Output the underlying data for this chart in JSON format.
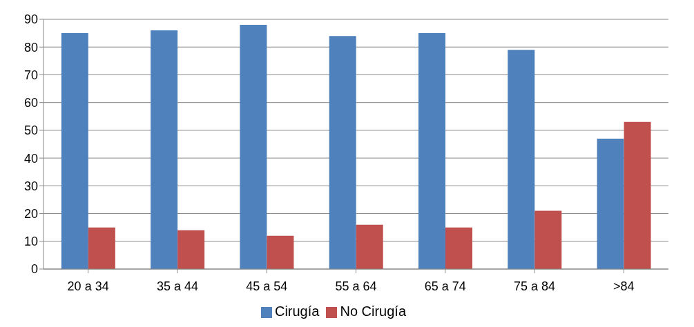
{
  "chart_data": {
    "type": "bar",
    "categories": [
      "20 a 34",
      "35 a 44",
      "45 a 54",
      "55 a 64",
      "65 a 74",
      "75 a 84",
      ">84"
    ],
    "series": [
      {
        "name": "Cirugía",
        "color": "#4f81bd",
        "values": [
          85,
          86,
          88,
          84,
          85,
          79,
          47
        ]
      },
      {
        "name": "No Cirugía",
        "color": "#c0504d",
        "values": [
          15,
          14,
          12,
          16,
          15,
          21,
          53
        ]
      }
    ],
    "ylim": [
      0,
      90
    ],
    "yticks": [
      0,
      10,
      20,
      30,
      40,
      50,
      60,
      70,
      80,
      90
    ],
    "grid": "y",
    "legend": "bottom"
  }
}
